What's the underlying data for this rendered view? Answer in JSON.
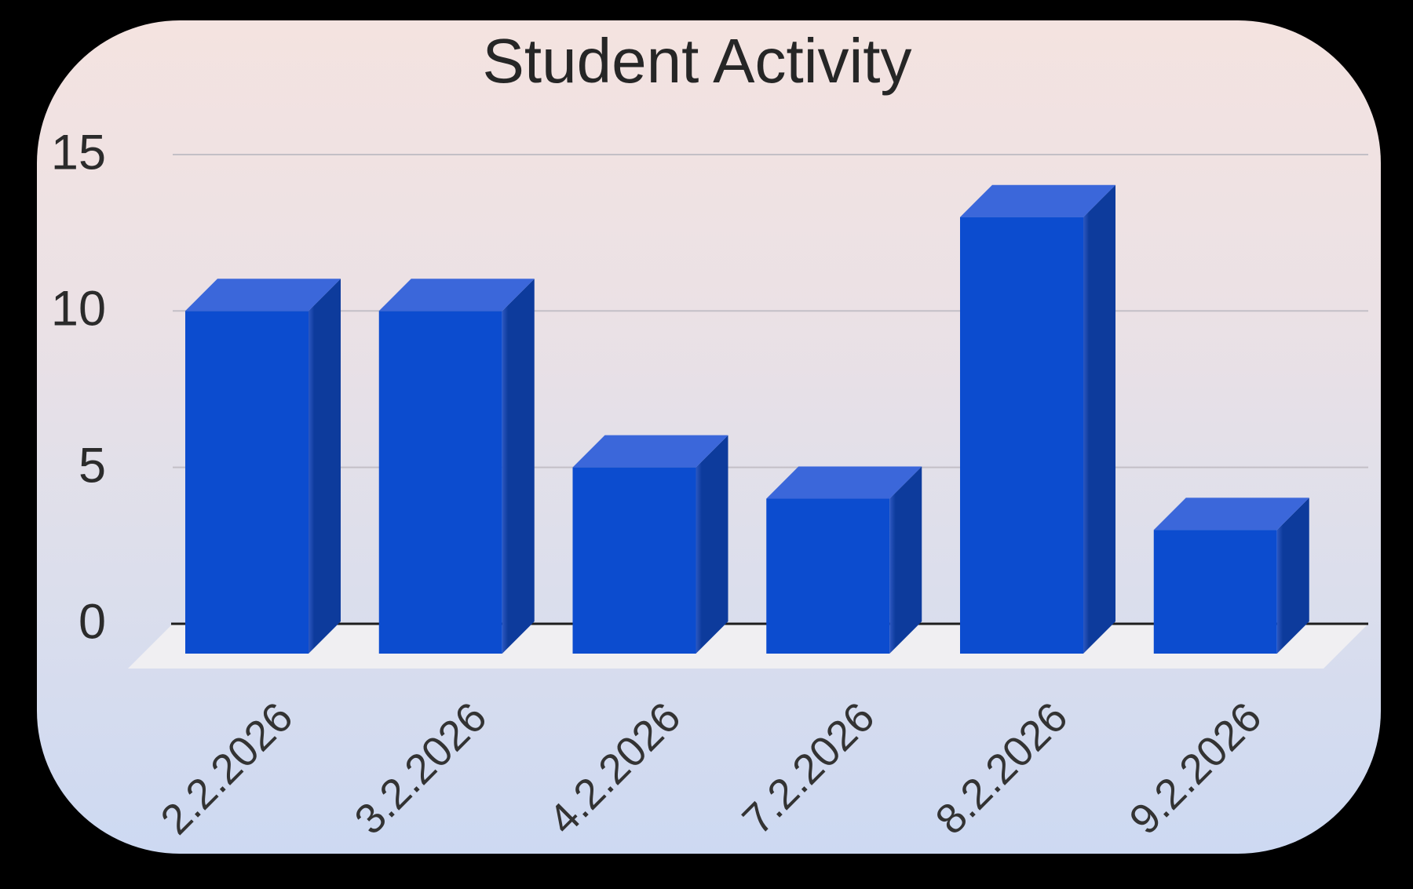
{
  "title": "Student Activity",
  "chart_data": {
    "type": "bar",
    "style": "3d-column",
    "title": "Student Activity",
    "xlabel": "",
    "ylabel": "",
    "categories": [
      "2.2.2026",
      "3.2.2026",
      "4.2.2026",
      "7.2.2026",
      "8.2.2026",
      "9.2.2026"
    ],
    "values": [
      10,
      10,
      5,
      4,
      13,
      3
    ],
    "ylim": [
      0,
      15
    ],
    "yticks": [
      0,
      5,
      10,
      15
    ],
    "grid": true,
    "legend": false,
    "x_label_rotation_deg": 45,
    "colors": {
      "bar_front": "#0c4ccf",
      "bar_top": "#3b67da",
      "bar_side": "#0d3b9c",
      "bar_side_sheen": "#2d58c1",
      "gridline": "#c3bfc6",
      "axis_line": "#1d1d1d",
      "floor": "#f0eff2",
      "title_text": "#262626",
      "y_tick_text": "#2b2b2b",
      "x_tick_text": "#333333",
      "card_bg_top": "#f4e3e0",
      "card_bg_upper_mid": "#ebe1e5",
      "card_bg_lower_mid": "#dedfeb",
      "card_bg_bottom": "#cdd9f2",
      "page_bg": "#000000"
    }
  }
}
